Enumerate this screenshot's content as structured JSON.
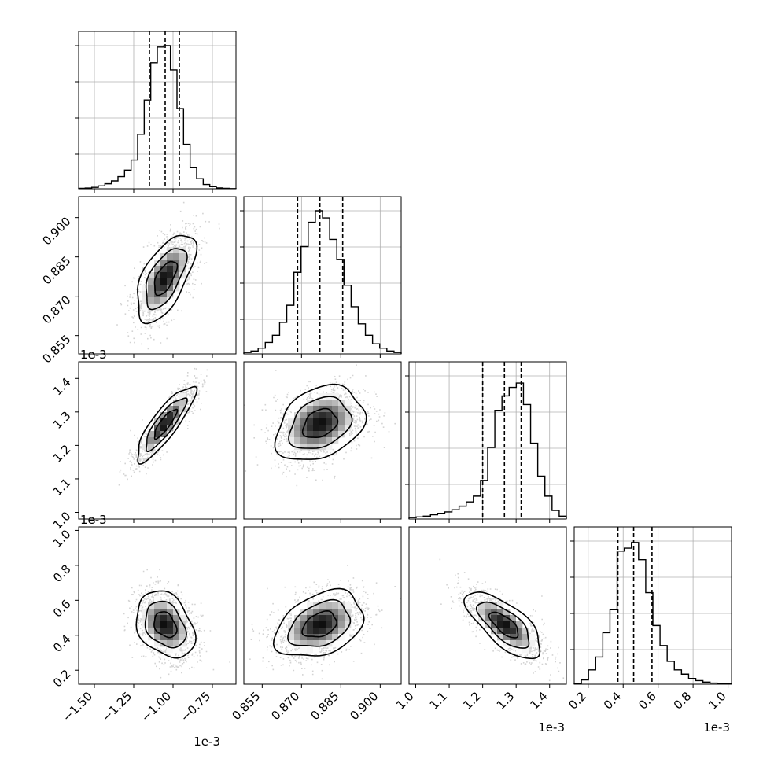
{
  "chart_data": {
    "type": "corner",
    "grid": true,
    "parameters": [
      {
        "index": 0,
        "range": [
          -1.6,
          -0.6
        ],
        "ticks": [
          -1.5,
          -1.25,
          -1.0,
          -0.75
        ],
        "tick_labels": [
          "−1.50",
          "−1.25",
          "−1.00",
          "−0.75"
        ],
        "offset_label": "1e-3",
        "quantiles": [
          -1.15,
          -1.05,
          -0.96
        ]
      },
      {
        "index": 1,
        "range": [
          0.848,
          0.908
        ],
        "ticks": [
          0.855,
          0.87,
          0.885,
          0.9
        ],
        "tick_labels": [
          "0.855",
          "0.870",
          "0.885",
          "0.900"
        ],
        "offset_label": "",
        "quantiles": [
          0.8685,
          0.877,
          0.8857
        ]
      },
      {
        "index": 2,
        "range": [
          0.98,
          1.45
        ],
        "ticks": [
          1.0,
          1.1,
          1.2,
          1.3,
          1.4
        ],
        "tick_labels": [
          "1.0",
          "1.1",
          "1.2",
          "1.3",
          "1.4"
        ],
        "offset_label": "1e-3",
        "quantiles": [
          1.2,
          1.265,
          1.315
        ]
      },
      {
        "index": 3,
        "range": [
          0.12,
          1.02
        ],
        "ticks": [
          0.2,
          0.4,
          0.6,
          0.8,
          1.0
        ],
        "tick_labels": [
          "0.2",
          "0.4",
          "0.6",
          "0.8",
          "1.0"
        ],
        "offset_label": "1e-3",
        "quantiles": [
          0.37,
          0.46,
          0.565
        ]
      }
    ],
    "row_offset_labels": [
      "",
      "1e-3",
      "1e-3",
      ""
    ],
    "histograms": [
      [
        0.003,
        0.005,
        0.01,
        0.02,
        0.035,
        0.055,
        0.085,
        0.13,
        0.2,
        0.38,
        0.62,
        0.88,
        0.99,
        1.0,
        0.83,
        0.56,
        0.31,
        0.15,
        0.07,
        0.03,
        0.015,
        0.006,
        0.003,
        0.001
      ],
      [
        0.01,
        0.02,
        0.04,
        0.08,
        0.13,
        0.22,
        0.34,
        0.57,
        0.75,
        0.92,
        1.0,
        0.95,
        0.8,
        0.66,
        0.48,
        0.33,
        0.21,
        0.13,
        0.07,
        0.04,
        0.02,
        0.01
      ],
      [
        0.01,
        0.015,
        0.02,
        0.03,
        0.04,
        0.05,
        0.065,
        0.09,
        0.12,
        0.16,
        0.27,
        0.5,
        0.76,
        0.86,
        0.92,
        0.95,
        0.8,
        0.53,
        0.3,
        0.16,
        0.06,
        0.02
      ],
      [
        0.005,
        0.03,
        0.1,
        0.19,
        0.36,
        0.52,
        0.93,
        0.95,
        0.99,
        0.87,
        0.64,
        0.41,
        0.27,
        0.16,
        0.1,
        0.07,
        0.04,
        0.025,
        0.015,
        0.008,
        0.004,
        0.002
      ]
    ],
    "correlations": [
      [
        1.0,
        0.6,
        0.85,
        -0.3
      ],
      [
        0.6,
        1.0,
        0.3,
        0.35
      ],
      [
        0.85,
        0.3,
        1.0,
        -0.7
      ],
      [
        -0.3,
        0.35,
        -0.7,
        1.0
      ]
    ]
  }
}
